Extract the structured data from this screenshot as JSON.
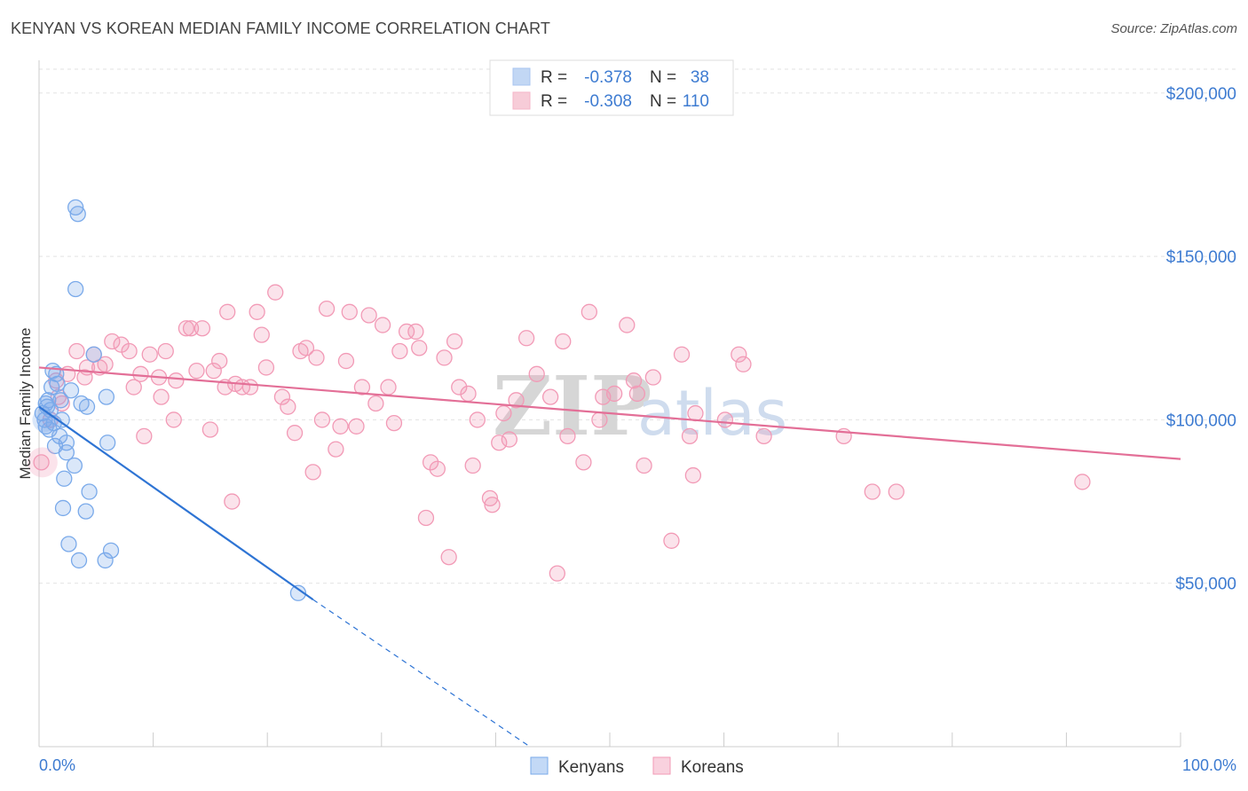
{
  "title": "KENYAN VS KOREAN MEDIAN FAMILY INCOME CORRELATION CHART",
  "source": "Source: ZipAtlas.com",
  "watermark": {
    "zip": "ZIP",
    "atlas": "atlas"
  },
  "chart_data": {
    "type": "scatter",
    "title": "KENYAN VS KOREAN MEDIAN FAMILY INCOME CORRELATION CHART",
    "xlabel": "",
    "ylabel": "Median Family Income",
    "xlim": [
      0,
      100
    ],
    "ylim": [
      0,
      210000
    ],
    "x_tick_labels": [
      "0.0%",
      "100.0%"
    ],
    "y_ticks": [
      50000,
      100000,
      150000,
      200000
    ],
    "y_tick_labels": [
      "$50,000",
      "$100,000",
      "$150,000",
      "$200,000"
    ],
    "grid": true,
    "legend": {
      "position": "top-center",
      "rows": [
        {
          "r_label": "R = ",
          "r_value": "-0.378",
          "n_label": "N = ",
          "n_value": "38",
          "color": "#a8c6f0"
        },
        {
          "r_label": "R = ",
          "r_value": "-0.308",
          "n_label": "N = ",
          "n_value": "110",
          "color": "#f4b6c8"
        }
      ]
    },
    "bottom_legend": [
      "Kenyans",
      "Koreans"
    ],
    "series": [
      {
        "name": "Kenyans",
        "color": "#7aaaea",
        "line_color": "#2e74d4",
        "r": -0.378,
        "n": 38,
        "trend": {
          "x": [
            0,
            24
          ],
          "y": [
            104000,
            45000
          ],
          "dashed_to": [
            43,
            0
          ]
        },
        "points": [
          [
            0.3,
            102000
          ],
          [
            0.5,
            100000
          ],
          [
            0.6,
            105000
          ],
          [
            0.6,
            98000
          ],
          [
            0.7,
            104000
          ],
          [
            0.8,
            106000
          ],
          [
            0.9,
            97000
          ],
          [
            1.0,
            103000
          ],
          [
            1.1,
            110000
          ],
          [
            1.2,
            115000
          ],
          [
            1.3,
            99000
          ],
          [
            1.4,
            92000
          ],
          [
            1.5,
            114000
          ],
          [
            1.6,
            111000
          ],
          [
            1.8,
            95000
          ],
          [
            1.9,
            106000
          ],
          [
            2.0,
            100000
          ],
          [
            2.1,
            73000
          ],
          [
            2.2,
            82000
          ],
          [
            2.4,
            93000
          ],
          [
            2.4,
            90000
          ],
          [
            2.6,
            62000
          ],
          [
            2.8,
            109000
          ],
          [
            3.1,
            86000
          ],
          [
            3.2,
            165000
          ],
          [
            3.4,
            163000
          ],
          [
            3.2,
            140000
          ],
          [
            3.5,
            57000
          ],
          [
            3.7,
            105000
          ],
          [
            4.1,
            72000
          ],
          [
            4.4,
            78000
          ],
          [
            4.8,
            120000
          ],
          [
            5.8,
            57000
          ],
          [
            5.9,
            107000
          ],
          [
            6.0,
            93000
          ],
          [
            6.3,
            60000
          ],
          [
            22.7,
            47000
          ],
          [
            4.2,
            104000
          ]
        ]
      },
      {
        "name": "Koreans",
        "color": "#f29ab6",
        "line_color": "#e36f97",
        "r": -0.308,
        "n": 110,
        "trend": {
          "x": [
            0,
            100
          ],
          "y": [
            116000,
            88000
          ]
        },
        "points": [
          [
            0.2,
            87000
          ],
          [
            1.0,
            100000
          ],
          [
            1.5,
            112000
          ],
          [
            1.7,
            107000
          ],
          [
            2.0,
            105000
          ],
          [
            2.5,
            114000
          ],
          [
            3.3,
            121000
          ],
          [
            4.0,
            113000
          ],
          [
            4.2,
            116000
          ],
          [
            4.8,
            120000
          ],
          [
            5.3,
            116000
          ],
          [
            5.8,
            117000
          ],
          [
            6.4,
            124000
          ],
          [
            7.2,
            123000
          ],
          [
            7.9,
            121000
          ],
          [
            8.3,
            110000
          ],
          [
            8.9,
            114000
          ],
          [
            9.2,
            95000
          ],
          [
            9.7,
            120000
          ],
          [
            10.5,
            113000
          ],
          [
            10.7,
            107000
          ],
          [
            11.1,
            121000
          ],
          [
            11.8,
            100000
          ],
          [
            12.0,
            112000
          ],
          [
            12.9,
            128000
          ],
          [
            13.3,
            128000
          ],
          [
            13.8,
            115000
          ],
          [
            14.3,
            128000
          ],
          [
            15.0,
            97000
          ],
          [
            15.3,
            115000
          ],
          [
            15.8,
            118000
          ],
          [
            16.3,
            110000
          ],
          [
            16.5,
            133000
          ],
          [
            16.9,
            75000
          ],
          [
            17.2,
            111000
          ],
          [
            17.8,
            110000
          ],
          [
            18.5,
            110000
          ],
          [
            19.1,
            133000
          ],
          [
            19.5,
            126000
          ],
          [
            19.9,
            116000
          ],
          [
            20.7,
            139000
          ],
          [
            21.3,
            107000
          ],
          [
            21.8,
            104000
          ],
          [
            22.4,
            96000
          ],
          [
            22.9,
            121000
          ],
          [
            23.4,
            122000
          ],
          [
            24.0,
            84000
          ],
          [
            24.3,
            119000
          ],
          [
            24.8,
            100000
          ],
          [
            25.2,
            134000
          ],
          [
            26.0,
            91000
          ],
          [
            26.4,
            98000
          ],
          [
            26.9,
            118000
          ],
          [
            27.2,
            133000
          ],
          [
            27.8,
            98000
          ],
          [
            28.3,
            110000
          ],
          [
            28.9,
            132000
          ],
          [
            29.5,
            105000
          ],
          [
            30.1,
            129000
          ],
          [
            30.6,
            110000
          ],
          [
            31.1,
            99000
          ],
          [
            31.6,
            121000
          ],
          [
            32.2,
            127000
          ],
          [
            33.0,
            127000
          ],
          [
            33.3,
            122000
          ],
          [
            33.9,
            70000
          ],
          [
            34.3,
            87000
          ],
          [
            34.9,
            85000
          ],
          [
            35.5,
            119000
          ],
          [
            35.9,
            58000
          ],
          [
            36.8,
            110000
          ],
          [
            36.4,
            124000
          ],
          [
            37.6,
            108000
          ],
          [
            38.0,
            86000
          ],
          [
            38.4,
            100000
          ],
          [
            39.5,
            76000
          ],
          [
            39.7,
            74000
          ],
          [
            40.3,
            93000
          ],
          [
            40.7,
            102000
          ],
          [
            41.2,
            94000
          ],
          [
            41.8,
            106000
          ],
          [
            42.7,
            125000
          ],
          [
            43.6,
            114000
          ],
          [
            44.8,
            107000
          ],
          [
            45.4,
            53000
          ],
          [
            45.9,
            124000
          ],
          [
            46.3,
            95000
          ],
          [
            47.7,
            87000
          ],
          [
            48.2,
            133000
          ],
          [
            49.1,
            100000
          ],
          [
            49.4,
            107000
          ],
          [
            50.4,
            108000
          ],
          [
            51.5,
            129000
          ],
          [
            52.1,
            112000
          ],
          [
            52.4,
            108000
          ],
          [
            53.0,
            86000
          ],
          [
            53.8,
            113000
          ],
          [
            55.4,
            63000
          ],
          [
            56.3,
            120000
          ],
          [
            57.0,
            95000
          ],
          [
            57.3,
            83000
          ],
          [
            57.5,
            102000
          ],
          [
            60.1,
            100000
          ],
          [
            61.3,
            120000
          ],
          [
            61.7,
            117000
          ],
          [
            63.5,
            95000
          ],
          [
            70.5,
            95000
          ],
          [
            73.0,
            78000
          ],
          [
            75.1,
            78000
          ],
          [
            91.4,
            81000
          ]
        ]
      }
    ]
  }
}
